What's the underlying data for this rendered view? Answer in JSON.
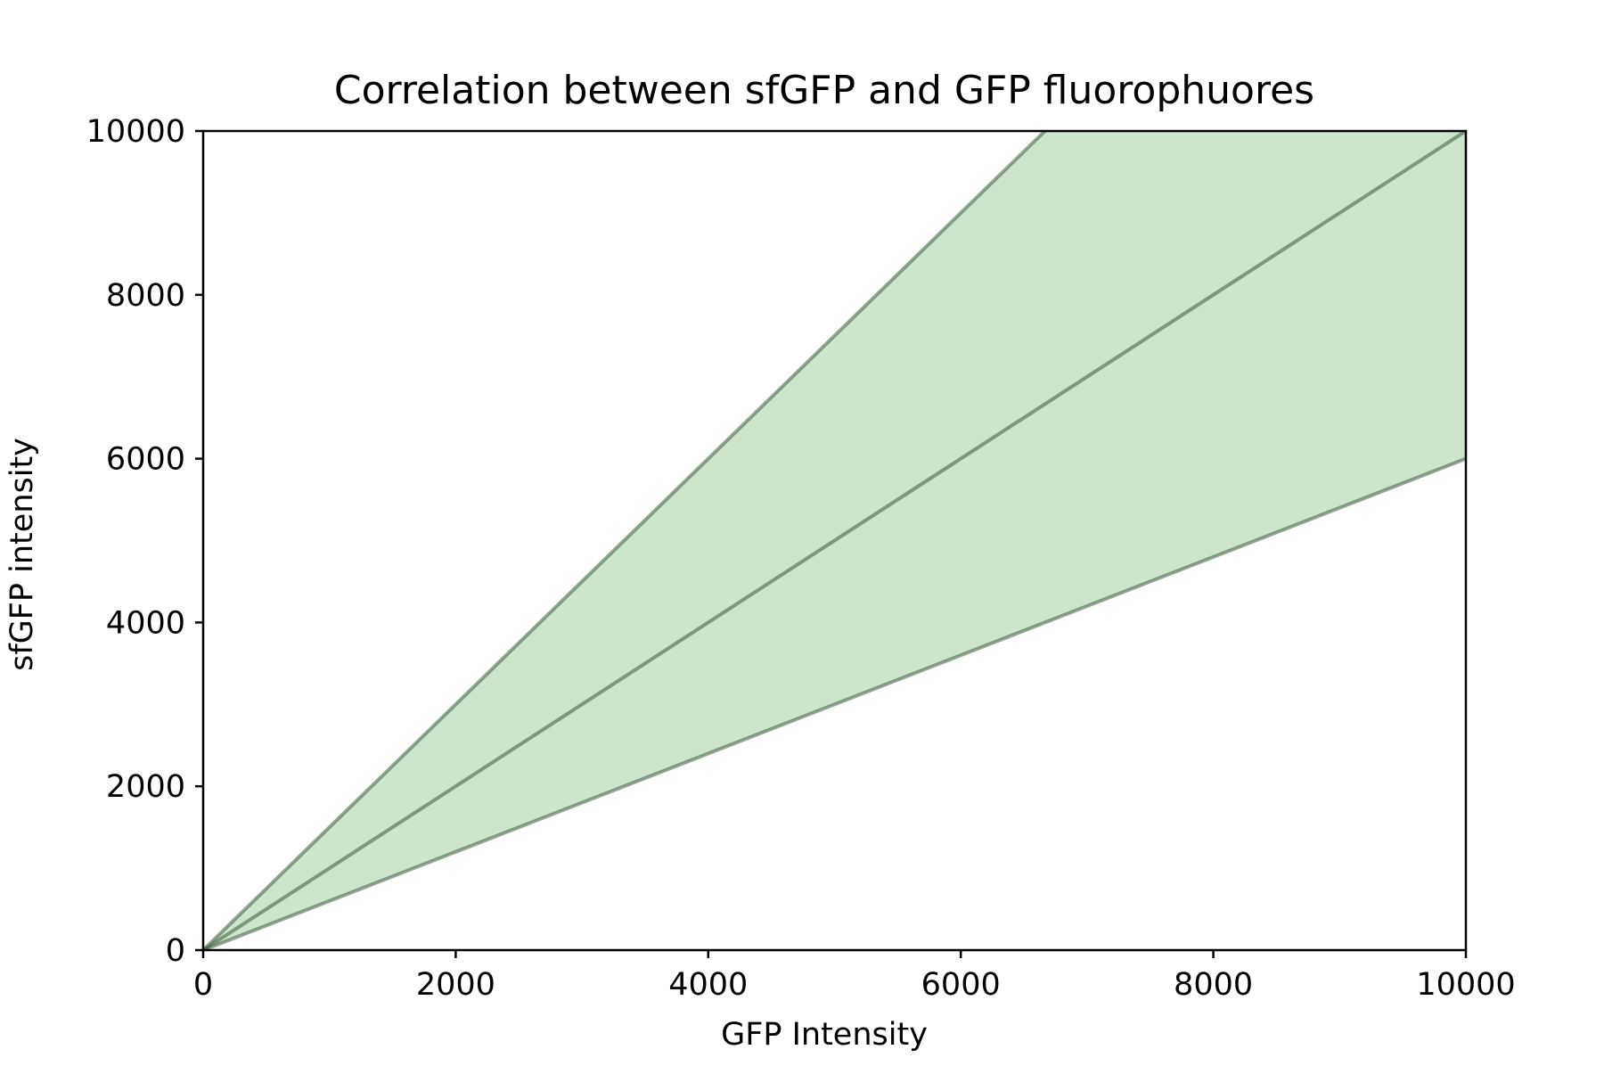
{
  "chart_data": {
    "type": "scatter",
    "title": "Correlation between sfGFP and GFP fluorophuores",
    "xlabel": "GFP Intensity",
    "ylabel": "sfGFP intensity",
    "xlim": [
      0,
      10000
    ],
    "ylim": [
      0,
      10000
    ],
    "xticks": [
      "0",
      "2000",
      "4000",
      "6000",
      "8000",
      "10000"
    ],
    "yticks": [
      "0",
      "2000",
      "4000",
      "6000",
      "8000",
      "10000"
    ],
    "grid": false,
    "legend": "none",
    "point_color": "#808080",
    "point_alpha": 0.7,
    "band": {
      "fill_color": "#cde5cd",
      "line_color": "#3a5a3a",
      "lines": [
        {
          "slope": 1.5
        },
        {
          "slope": 1.0
        },
        {
          "slope": 0.6
        }
      ]
    },
    "x": [],
    "y": []
  }
}
